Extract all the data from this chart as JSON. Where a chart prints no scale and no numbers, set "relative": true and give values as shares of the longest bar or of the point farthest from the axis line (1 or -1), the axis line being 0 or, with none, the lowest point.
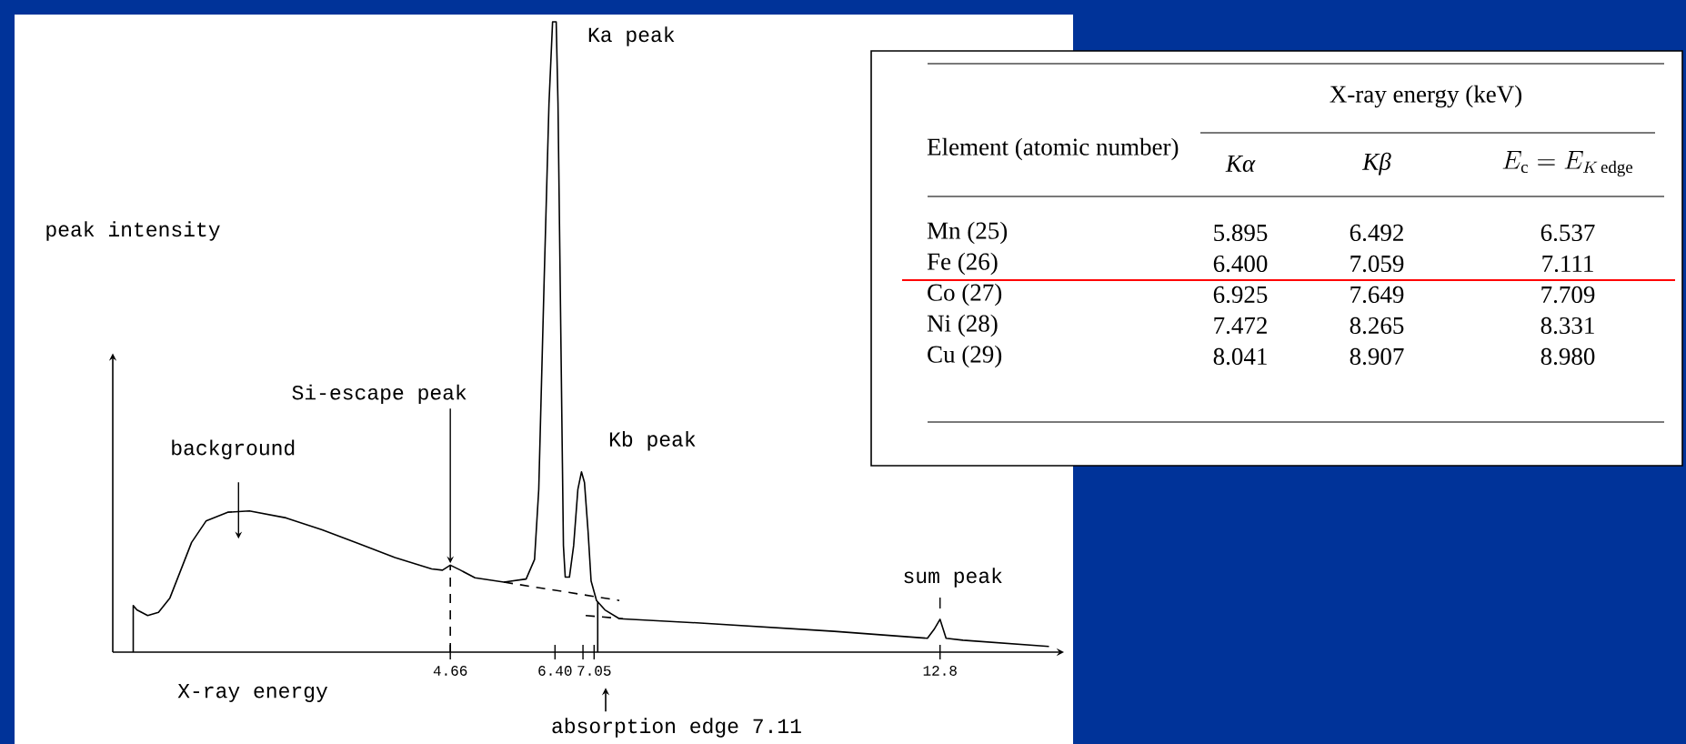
{
  "chart_data": [
    {
      "type": "line",
      "relative": true,
      "xlabel": "X-ray energy",
      "ylabel": "peak intensity",
      "xlim": [
        -0.95,
        14.86
      ],
      "xticks": [
        4.66,
        {
          "value": 6.4,
          "label": "6.40"
        },
        {
          "value": 6.865,
          "label": null
        },
        7.05,
        12.8
      ],
      "series": [
        {
          "color": "#000000",
          "x": [
            -0.61,
            -0.61,
            -0.55,
            -0.37,
            -0.19,
            0.0,
            0.18,
            0.36,
            0.6,
            0.96,
            1.32,
            1.93,
            2.53,
            3.14,
            3.74,
            4.35,
            4.53,
            4.66,
            4.83,
            5.07,
            5.55,
            5.92,
            6.06,
            6.13,
            6.22,
            6.3,
            6.36,
            6.42,
            6.45,
            6.5,
            6.54,
            6.57,
            6.64,
            6.71,
            6.78,
            6.84,
            6.89,
            6.95,
            7.0,
            7.09,
            7.23,
            7.47,
            8.66,
            11.04,
            12.59,
            12.7,
            12.8,
            12.9,
            13.18,
            14.61
          ],
          "values": [
            0,
            0.074,
            0.067,
            0.058,
            0.063,
            0.086,
            0.13,
            0.174,
            0.208,
            0.222,
            0.224,
            0.213,
            0.194,
            0.172,
            0.15,
            0.132,
            0.13,
            0.138,
            0.13,
            0.118,
            0.111,
            0.116,
            0.147,
            0.258,
            0.591,
            0.87,
            1.0,
            1.0,
            0.87,
            0.48,
            0.169,
            0.119,
            0.119,
            0.169,
            0.258,
            0.286,
            0.269,
            0.191,
            0.113,
            0.082,
            0.067,
            0.053,
            0.047,
            0.033,
            0.022,
            0.036,
            0.052,
            0.022,
            0.019,
            0.009
          ]
        },
        {
          "color": "#000000",
          "line_style": "dashed",
          "x": [
            5.55,
            7.47
          ],
          "values": [
            0.111,
            0.082
          ]
        },
        {
          "color": "#000000",
          "line_style": "dashed",
          "x": [
            6.91,
            7.53
          ],
          "values": [
            0.058,
            0.053
          ]
        },
        {
          "color": "#000000",
          "line_style": "dashed",
          "x": [
            4.66,
            4.66
          ],
          "values": [
            0,
            0.138
          ]
        },
        {
          "color": "#000000",
          "x": [
            7.11,
            7.11
          ],
          "values": [
            0,
            0.08
          ]
        }
      ],
      "annotations": [
        {
          "text": "Ka peak",
          "x": 6.4,
          "y": 1.0
        },
        {
          "text": "Kb peak",
          "x": 6.84,
          "y": 0.286
        },
        {
          "text": "Si-escape peak",
          "x": 4.66,
          "y": 0.138
        },
        {
          "text": "background",
          "x": 1.14,
          "y": 0.18
        },
        {
          "text": "sum peak",
          "x": 12.8,
          "y": 0.052
        },
        "absorption edge 7.11"
      ]
    },
    {
      "type": "heatmap",
      "title": "X-ray energy (keV)",
      "ylabel": "Element (atomic number)",
      "categories": [
        "Kα",
        "Kβ",
        "E_{\\mathrm{c}} = E_{K\\,\\mathrm{edge}}"
      ],
      "y_categories": [
        "Mn (25)",
        "Fe (26)",
        "Co (27)",
        "Ni (28)",
        "Cu (29)"
      ],
      "cells": [
        [
          5.895,
          6.492,
          6.537
        ],
        [
          6.4,
          7.059,
          7.111
        ],
        [
          6.925,
          7.649,
          7.709
        ],
        [
          7.472,
          8.265,
          8.331
        ],
        [
          8.041,
          8.907,
          8.98
        ]
      ],
      "cell_labels": [
        [
          "5.895",
          "6.492",
          "6.537"
        ],
        [
          "6.400",
          "7.059",
          "7.111"
        ],
        [
          "6.925",
          "7.649",
          "7.709"
        ],
        [
          "7.472",
          "8.265",
          "8.331"
        ],
        [
          "8.041",
          "8.907",
          "8.980"
        ]
      ],
      "ref_lines": [
        {
          "axis": "y",
          "value": "Fe (26)",
          "color": "#ff0000"
        }
      ]
    }
  ]
}
